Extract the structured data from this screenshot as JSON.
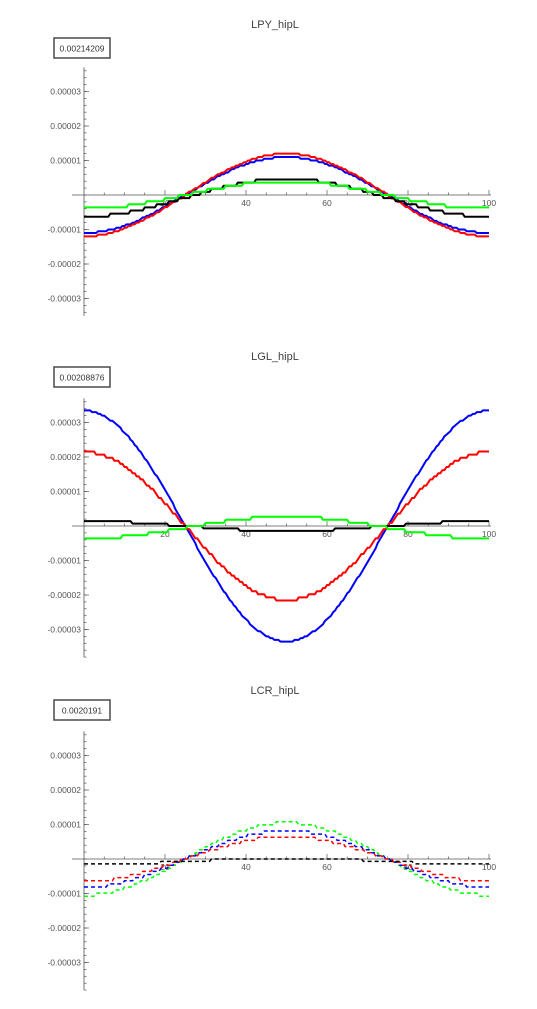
{
  "colors": {
    "blue": "#0000ff",
    "red": "#ff0000",
    "black": "#000000",
    "green": "#00ff00",
    "axis": "#555555"
  },
  "chart_data": [
    {
      "type": "line",
      "title": "LPY_hipL",
      "badge": "0.00214209",
      "xlim": [
        0,
        100
      ],
      "ylim": [
        -3.5e-05,
        3.7e-05
      ],
      "x_ticks": [
        20,
        40,
        60,
        80,
        100
      ],
      "x_tick_labels": [
        "20",
        "40",
        "60",
        "80",
        "100"
      ],
      "y_ticks": [
        -3e-05,
        -2e-05,
        -1e-05,
        1e-05,
        2e-05,
        3e-05
      ],
      "y_tick_labels": [
        "-0.00003",
        "-0.00002",
        "-0.00001",
        "0.00001",
        "0.00002",
        "0.00003"
      ],
      "grid": false,
      "series": [
        {
          "color": "#0000ff",
          "dashed": false,
          "base": 0.0,
          "amp": -1.1e-05,
          "quant": 5e-07
        },
        {
          "color": "#ff0000",
          "dashed": false,
          "base": 0.0,
          "amp": -1.2e-05,
          "quant": 5e-07
        },
        {
          "color": "#000000",
          "dashed": false,
          "base": -8e-07,
          "amp": -5.5e-06,
          "quant": 9e-07
        },
        {
          "color": "#00ff00",
          "dashed": false,
          "base": 0.0,
          "amp": -4e-06,
          "quant": 9e-07
        }
      ]
    },
    {
      "type": "line",
      "title": "LGL_hipL",
      "badge": "0.00208876",
      "xlim": [
        0,
        100
      ],
      "ylim": [
        -3.8e-05,
        3.7e-05
      ],
      "x_ticks": [
        20,
        40,
        60,
        80,
        100
      ],
      "x_tick_labels": [
        "20",
        "40",
        "60",
        "80",
        "100"
      ],
      "y_ticks": [
        -3e-05,
        -2e-05,
        -1e-05,
        1e-05,
        2e-05,
        3e-05
      ],
      "y_tick_labels": [
        "-0.00003",
        "-0.00002",
        "-0.00001",
        "0.00001",
        "0.00002",
        "0.00003"
      ],
      "grid": false,
      "series": [
        {
          "color": "#0000ff",
          "dashed": false,
          "base": 0.0,
          "amp": 3.35e-05,
          "quant": 5e-07
        },
        {
          "color": "#ff0000",
          "dashed": false,
          "base": 0.0,
          "amp": 2.15e-05,
          "quant": 9e-07
        },
        {
          "color": "#000000",
          "dashed": false,
          "base": 0.0,
          "amp": 1.4e-06,
          "quant": 7e-07
        },
        {
          "color": "#00ff00",
          "dashed": false,
          "base": -5e-07,
          "amp": -3.2e-06,
          "quant": 9e-07
        }
      ]
    },
    {
      "type": "line",
      "title": "LCR_hipL",
      "badge": "0.0020191",
      "xlim": [
        0,
        100
      ],
      "ylim": [
        -3.8e-05,
        3.7e-05
      ],
      "x_ticks": [
        20,
        40,
        60,
        80,
        100
      ],
      "x_tick_labels": [
        "20",
        "40",
        "60",
        "80",
        "100"
      ],
      "y_ticks": [
        -3e-05,
        -2e-05,
        -1e-05,
        1e-05,
        2e-05,
        3e-05
      ],
      "y_tick_labels": [
        "-0.00003",
        "-0.00002",
        "-0.00001",
        "0.00001",
        "0.00002",
        "0.00003"
      ],
      "grid": false,
      "series": [
        {
          "color": "#00ff00",
          "dashed": true,
          "base": 0.0,
          "amp": -1.05e-05,
          "quant": 9e-07
        },
        {
          "color": "#0000ff",
          "dashed": true,
          "base": 0.0,
          "amp": -8.2e-06,
          "quant": 9e-07
        },
        {
          "color": "#ff0000",
          "dashed": true,
          "base": 0.0,
          "amp": -6.5e-06,
          "quant": 9e-07
        },
        {
          "color": "#000000",
          "dashed": true,
          "base": -7e-07,
          "amp": -9e-07,
          "quant": 7e-07
        }
      ]
    }
  ]
}
